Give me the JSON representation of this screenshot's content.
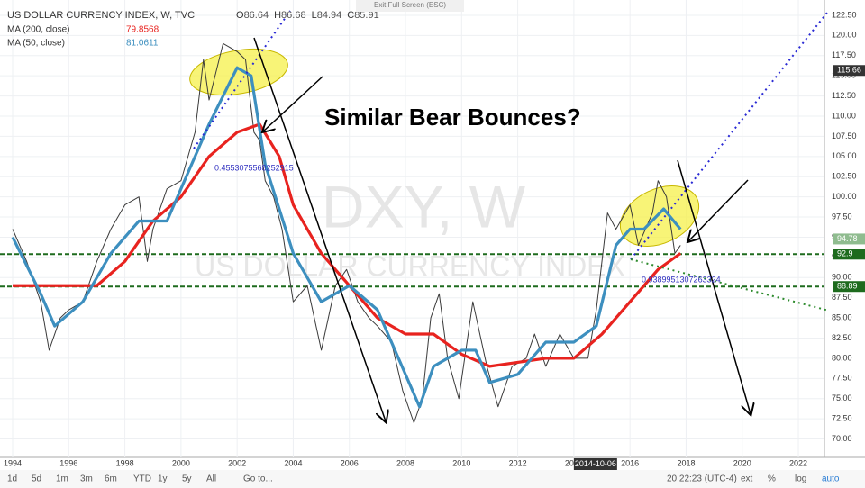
{
  "chart_data": {
    "type": "line",
    "title": "US DOLLAR CURRENCY INDEX, W, TVC",
    "ohlc": [
      {
        "label": "O",
        "value": 86.64
      },
      {
        "label": "H",
        "value": 86.68
      },
      {
        "label": "L",
        "value": 84.94
      },
      {
        "label": "C",
        "value": 85.91
      }
    ],
    "exit_button": "Exit Full Screen (ESC)",
    "watermark": "DXY, W",
    "watermark_sub": "US DOLLAR CURRENCY INDEX",
    "annotation": "Similar Bear Bounces?",
    "fib_labels": [
      0.4553075568252915,
      0.9389951307263324
    ],
    "xlim": [
      1993.55,
      2022.93
    ],
    "ylim": [
      67.72,
      124.39
    ],
    "xticks": [
      1994,
      1996,
      1998,
      2000,
      2002,
      2004,
      2006,
      2008,
      2010,
      2012,
      2014,
      2016,
      2018,
      2020,
      2022
    ],
    "yticks": [
      {
        "value": 70,
        "label": "70.00"
      },
      {
        "value": 72.5,
        "label": "72.50"
      },
      {
        "value": 75,
        "label": "75.00"
      },
      {
        "value": 77.5,
        "label": "77.50"
      },
      {
        "value": 80,
        "label": "80.00"
      },
      {
        "value": 82.5,
        "label": "82.50"
      },
      {
        "value": 85,
        "label": "85.00"
      },
      {
        "value": 87.5,
        "label": "87.50"
      },
      {
        "value": 90,
        "label": "90.00"
      },
      {
        "value": 92.5,
        "label": "92.50"
      },
      {
        "value": 95,
        "label": "95.00"
      },
      {
        "value": 97.5,
        "label": "97.50"
      },
      {
        "value": 100,
        "label": "100.00"
      },
      {
        "value": 102.5,
        "label": "102.50"
      },
      {
        "value": 105,
        "label": "105.00"
      },
      {
        "value": 107.5,
        "label": "107.50"
      },
      {
        "value": 110,
        "label": "110.00"
      },
      {
        "value": 112.5,
        "label": "112.50"
      },
      {
        "value": 115,
        "label": "115.00"
      },
      {
        "value": 117.5,
        "label": "117.50"
      },
      {
        "value": 120,
        "label": "120.00"
      },
      {
        "value": 122.5,
        "label": "122.50"
      }
    ],
    "crosshair_x": {
      "value": 2014.77,
      "label": "2014-10-06"
    },
    "price_labels": [
      {
        "value": 115.66,
        "color": "#333333"
      },
      {
        "value": 94.78,
        "color": "#8fbc8f"
      },
      {
        "value": 92.9,
        "color": "#1e6b1e"
      },
      {
        "value": 88.89,
        "color": "#1e6b1e"
      }
    ],
    "hlines": [
      92.9,
      88.89
    ],
    "series": [
      {
        "color": "#3a3a3a",
        "x": [
          1994,
          1994.5,
          1995,
          1995.3,
          1995.7,
          1996,
          1996.5,
          1997,
          1997.5,
          1998,
          1998.5,
          1998.8,
          1999,
          1999.5,
          2000,
          2000.5,
          2000.8,
          2001,
          2001.5,
          2002,
          2002.3,
          2002.6,
          2002.8,
          2003,
          2003.3,
          2003.6,
          2004,
          2004.5,
          2005,
          2005.5,
          2005.9,
          2006.3,
          2006.7,
          2007,
          2007.5,
          2007.9,
          2008.3,
          2008.6,
          2008.9,
          2009.2,
          2009.5,
          2009.9,
          2010.4,
          2010.9,
          2011.3,
          2011.8,
          2012.3,
          2012.6,
          2013,
          2013.5,
          2014,
          2014.5,
          2014.8,
          2015.2,
          2015.5,
          2016,
          2016.3,
          2016.8,
          2017,
          2017.3,
          2017.6,
          2017.8
        ],
        "values": [
          96,
          92,
          87,
          81,
          85,
          86,
          87,
          92,
          96,
          99,
          100,
          92,
          96,
          101,
          102,
          108,
          117,
          112,
          119,
          118,
          117,
          108,
          107,
          102,
          100,
          96,
          87,
          89,
          81,
          89,
          91,
          87,
          85,
          84,
          82,
          76,
          72,
          75,
          85,
          88,
          80,
          75,
          87,
          79,
          74,
          79,
          80,
          83,
          79,
          83,
          80,
          80,
          86,
          98,
          96,
          99,
          94,
          98,
          102,
          100,
          93,
          94
        ]
      },
      {
        "name": "MA (200, close)",
        "last": 79.8568,
        "color": "#e8231f",
        "x": [
          1994,
          1996,
          1997,
          1998,
          1999,
          2000,
          2001,
          2002,
          2002.8,
          2003.5,
          2004,
          2005,
          2006,
          2007,
          2008,
          2009,
          2010,
          2011,
          2012,
          2013,
          2014,
          2015,
          2016,
          2017,
          2017.8
        ],
        "values": [
          89,
          89,
          89,
          92,
          97,
          100,
          105,
          108,
          109,
          105,
          99,
          93,
          89,
          85,
          83,
          83,
          80.5,
          79,
          79.5,
          80,
          80,
          83,
          87,
          91,
          93
        ]
      },
      {
        "name": "MA (50, close)",
        "last": 81.0611,
        "color": "#3d8fbf",
        "x": [
          1994,
          1995,
          1995.5,
          1996.5,
          1997.5,
          1998.5,
          1999,
          1999.5,
          2000,
          2001,
          2002,
          2002.5,
          2003,
          2004,
          2005,
          2006,
          2007,
          2008,
          2008.5,
          2009,
          2010,
          2010.5,
          2011,
          2012,
          2013,
          2014,
          2014.8,
          2015.5,
          2016,
          2016.5,
          2017.2,
          2017.8
        ],
        "values": [
          95,
          88,
          84,
          87,
          93,
          97,
          97,
          97,
          101,
          109,
          116,
          115,
          104,
          93,
          87,
          89,
          86,
          78,
          74,
          79,
          81,
          81,
          77,
          78,
          82,
          82,
          84,
          94,
          96,
          96,
          98.5,
          96
        ]
      }
    ],
    "toolbar": {
      "ranges": [
        "1d",
        "5d",
        "1m",
        "3m",
        "6m",
        "YTD",
        "1y",
        "5y",
        "All"
      ],
      "goto": "Go to...",
      "time": "20:22:23 (UTC-4)",
      "options": [
        "ext",
        "%",
        "log",
        "auto"
      ]
    }
  }
}
